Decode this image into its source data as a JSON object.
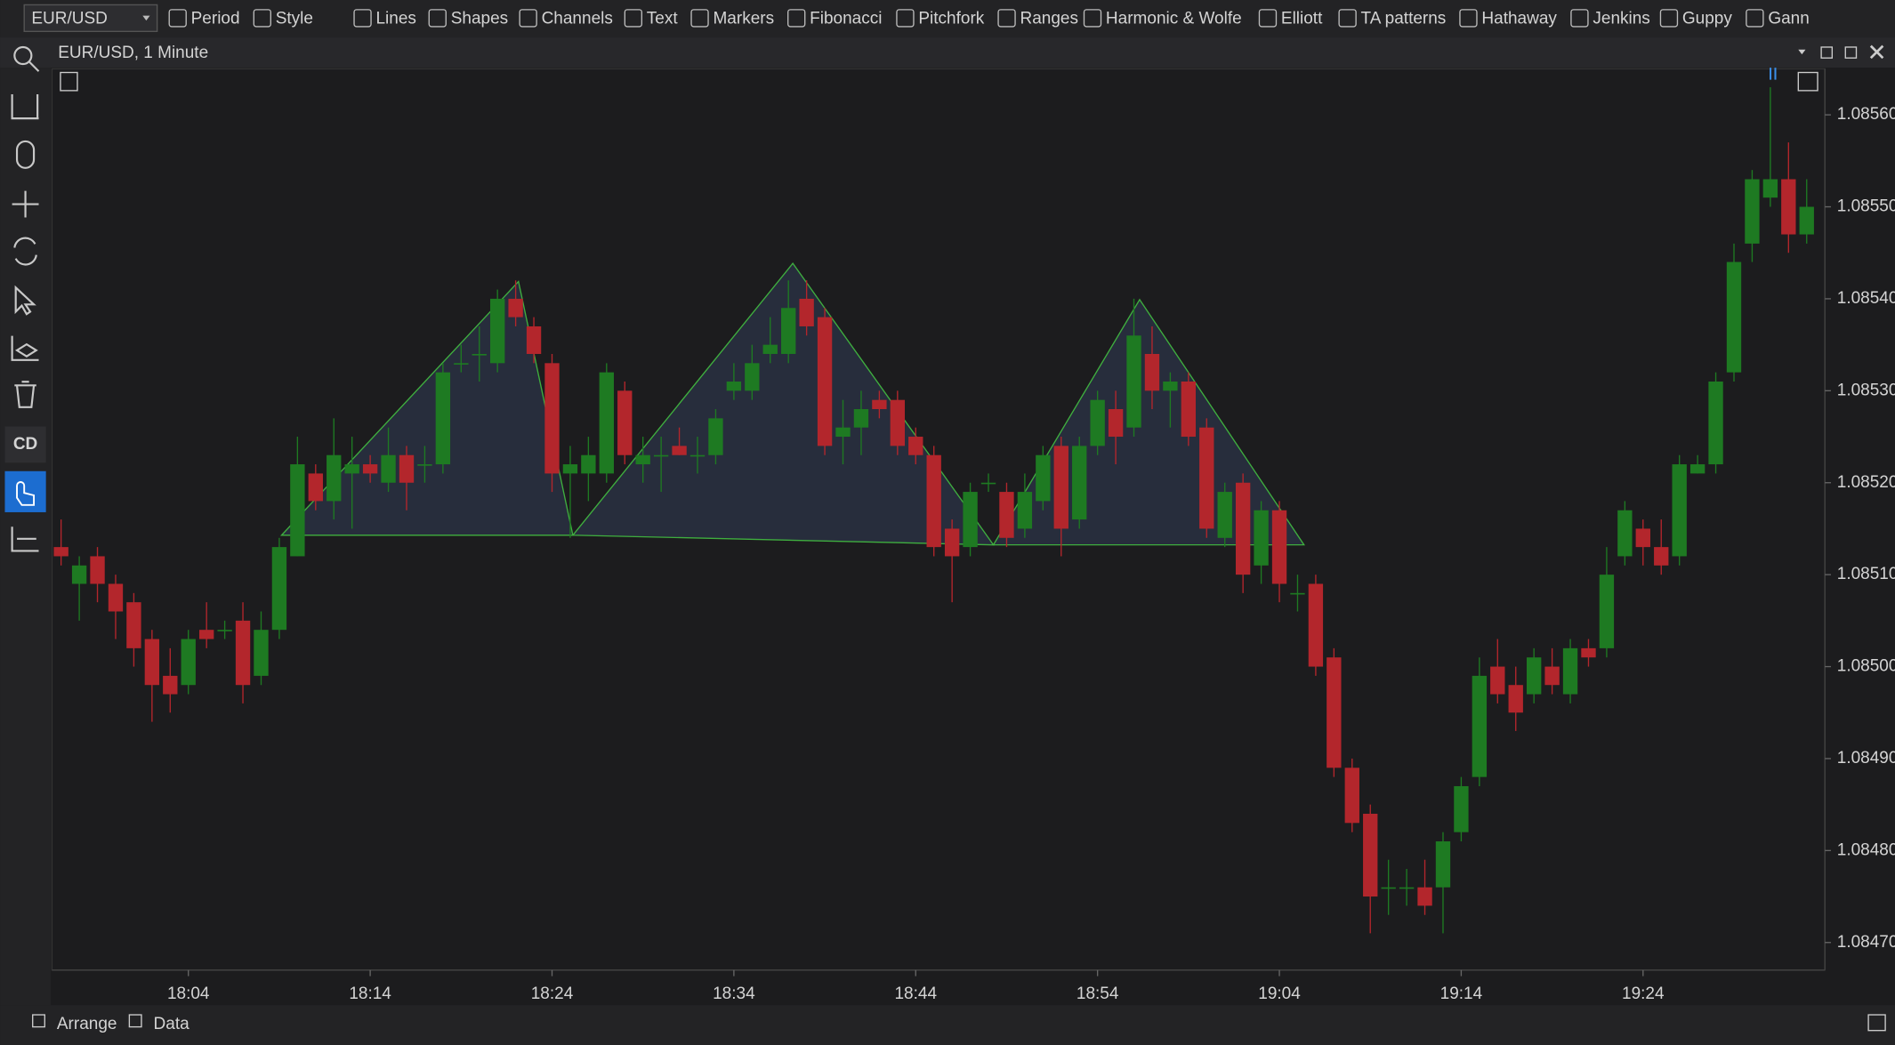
{
  "toolbar": {
    "symbol": "EUR/USD",
    "items": [
      "Period",
      "Style",
      "Lines",
      "Shapes",
      "Channels",
      "Text",
      "Markers",
      "Fibonacci",
      "Pitchfork",
      "Ranges",
      "Harmonic & Wolfe",
      "Elliott",
      "TA patterns",
      "Hathaway",
      "Jenkins",
      "Guppy",
      "Gann"
    ]
  },
  "sidebar": {
    "badge": "CD"
  },
  "bottom_bar": [
    "Arrange",
    "Data"
  ],
  "chart_data": {
    "type": "candlestick",
    "title": "EUR/USD, 1 Minute",
    "up_color": "#1e7a22",
    "down_color": "#b3262c",
    "x": [
      "17:57",
      "17:58",
      "17:59",
      "18:00",
      "18:01",
      "18:02",
      "18:03",
      "18:04",
      "18:05",
      "18:06",
      "18:07",
      "18:08",
      "18:09",
      "18:10",
      "18:11",
      "18:12",
      "18:13",
      "18:14",
      "18:15",
      "18:16",
      "18:17",
      "18:18",
      "18:19",
      "18:20",
      "18:21",
      "18:22",
      "18:23",
      "18:24",
      "18:25",
      "18:26",
      "18:27",
      "18:28",
      "18:29",
      "18:30",
      "18:31",
      "18:32",
      "18:33",
      "18:34",
      "18:35",
      "18:36",
      "18:37",
      "18:38",
      "18:39",
      "18:40",
      "18:41",
      "18:42",
      "18:43",
      "18:44",
      "18:45",
      "18:46",
      "18:47",
      "18:48",
      "18:49",
      "18:50",
      "18:51",
      "18:52",
      "18:53",
      "18:54",
      "18:55",
      "18:56",
      "18:57",
      "18:58",
      "18:59",
      "19:00",
      "19:01",
      "19:02",
      "19:03",
      "19:04",
      "19:05",
      "19:06",
      "19:07",
      "19:08",
      "19:09",
      "19:10",
      "19:11",
      "19:12",
      "19:13",
      "19:14",
      "19:15",
      "19:16",
      "19:17",
      "19:18",
      "19:19",
      "19:20",
      "19:21",
      "19:22",
      "19:23",
      "19:24",
      "19:25",
      "19:26",
      "19:27",
      "19:28",
      "19:29",
      "19:30",
      "19:31",
      "19:32",
      "19:33"
    ],
    "open": [
      1.08513,
      1.08509,
      1.08512,
      1.08509,
      1.08507,
      1.08503,
      1.08499,
      1.08498,
      1.08504,
      1.08504,
      1.08505,
      1.08499,
      1.08504,
      1.08512,
      1.08521,
      1.08518,
      1.08521,
      1.08522,
      1.0852,
      1.08523,
      1.08522,
      1.08522,
      1.08533,
      1.08534,
      1.08533,
      1.0854,
      1.08537,
      1.08533,
      1.08521,
      1.08521,
      1.08521,
      1.0853,
      1.08522,
      1.08523,
      1.08524,
      1.08523,
      1.08523,
      1.0853,
      1.0853,
      1.08534,
      1.08534,
      1.0854,
      1.08538,
      1.08525,
      1.08526,
      1.08529,
      1.08529,
      1.08525,
      1.08523,
      1.08515,
      1.08513,
      1.0852,
      1.08519,
      1.08515,
      1.08518,
      1.08524,
      1.08516,
      1.08524,
      1.08528,
      1.08526,
      1.08534,
      1.0853,
      1.08531,
      1.08526,
      1.08514,
      1.0852,
      1.08511,
      1.08517,
      1.08508,
      1.08509,
      1.08501,
      1.08489,
      1.08484,
      1.08476,
      1.08476,
      1.08476,
      1.08476,
      1.08482,
      1.08488,
      1.085,
      1.08498,
      1.08497,
      1.085,
      1.08497,
      1.08502,
      1.08502,
      1.08512,
      1.08515,
      1.08513,
      1.08512,
      1.08521,
      1.08522,
      1.08532,
      1.08546,
      1.08551,
      1.08553,
      1.08547
    ],
    "high": [
      1.08516,
      1.08512,
      1.08513,
      1.0851,
      1.08508,
      1.08504,
      1.08502,
      1.08504,
      1.08507,
      1.08505,
      1.08507,
      1.08506,
      1.08514,
      1.08525,
      1.08522,
      1.08527,
      1.08525,
      1.08523,
      1.08526,
      1.08524,
      1.08524,
      1.08533,
      1.08535,
      1.08537,
      1.08541,
      1.08542,
      1.08538,
      1.08534,
      1.08524,
      1.08525,
      1.08533,
      1.08531,
      1.08525,
      1.08525,
      1.08526,
      1.08525,
      1.08528,
      1.08533,
      1.08535,
      1.08538,
      1.08542,
      1.08542,
      1.08539,
      1.08529,
      1.0853,
      1.0853,
      1.0853,
      1.08526,
      1.08524,
      1.08516,
      1.0852,
      1.08521,
      1.0852,
      1.08521,
      1.08524,
      1.08525,
      1.08525,
      1.0853,
      1.0853,
      1.0854,
      1.08537,
      1.08532,
      1.08532,
      1.08527,
      1.0852,
      1.08521,
      1.08518,
      1.08518,
      1.0851,
      1.0851,
      1.08502,
      1.0849,
      1.08485,
      1.08479,
      1.08478,
      1.08479,
      1.08482,
      1.08488,
      1.08501,
      1.08503,
      1.085,
      1.08502,
      1.08502,
      1.08503,
      1.08503,
      1.08513,
      1.08518,
      1.08516,
      1.08516,
      1.08523,
      1.08523,
      1.08532,
      1.08546,
      1.08554,
      1.08563,
      1.08557,
      1.08553
    ],
    "low": [
      1.08511,
      1.08505,
      1.08507,
      1.08503,
      1.085,
      1.08494,
      1.08495,
      1.08497,
      1.08502,
      1.08503,
      1.08496,
      1.08498,
      1.08503,
      1.08512,
      1.08517,
      1.08516,
      1.08515,
      1.0852,
      1.08519,
      1.08517,
      1.0852,
      1.08521,
      1.08532,
      1.08531,
      1.08532,
      1.08537,
      1.08533,
      1.08519,
      1.08514,
      1.08518,
      1.0852,
      1.08522,
      1.0852,
      1.08519,
      1.08523,
      1.08521,
      1.08522,
      1.08529,
      1.08529,
      1.08533,
      1.08533,
      1.08536,
      1.08523,
      1.08522,
      1.08523,
      1.08527,
      1.08523,
      1.08522,
      1.08512,
      1.08507,
      1.08512,
      1.08519,
      1.08513,
      1.08514,
      1.08517,
      1.08512,
      1.08515,
      1.08523,
      1.08522,
      1.08525,
      1.08528,
      1.08526,
      1.08524,
      1.08514,
      1.08513,
      1.08508,
      1.08509,
      1.08507,
      1.08506,
      1.08499,
      1.08488,
      1.08482,
      1.08471,
      1.08473,
      1.08474,
      1.08473,
      1.08471,
      1.08481,
      1.08487,
      1.08496,
      1.08493,
      1.08496,
      1.08497,
      1.08496,
      1.085,
      1.08501,
      1.08511,
      1.08511,
      1.0851,
      1.08511,
      1.08521,
      1.08521,
      1.08531,
      1.08544,
      1.0855,
      1.08545,
      1.08546
    ],
    "close": [
      1.08512,
      1.08511,
      1.08509,
      1.08506,
      1.08502,
      1.08498,
      1.08497,
      1.08503,
      1.08503,
      1.08504,
      1.08498,
      1.08504,
      1.08513,
      1.08522,
      1.08518,
      1.08523,
      1.08522,
      1.08521,
      1.08523,
      1.0852,
      1.08522,
      1.08532,
      1.08533,
      1.08534,
      1.0854,
      1.08538,
      1.08534,
      1.08521,
      1.08522,
      1.08523,
      1.08532,
      1.08523,
      1.08523,
      1.08523,
      1.08523,
      1.08523,
      1.08527,
      1.08531,
      1.08533,
      1.08535,
      1.08539,
      1.08537,
      1.08524,
      1.08526,
      1.08528,
      1.08528,
      1.08524,
      1.08523,
      1.08513,
      1.08512,
      1.08519,
      1.0852,
      1.08514,
      1.08519,
      1.08523,
      1.08515,
      1.08524,
      1.08529,
      1.08525,
      1.08536,
      1.0853,
      1.08531,
      1.08525,
      1.08515,
      1.08519,
      1.0851,
      1.08517,
      1.08509,
      1.08508,
      1.085,
      1.08489,
      1.08483,
      1.08475,
      1.08476,
      1.08476,
      1.08474,
      1.08481,
      1.08487,
      1.08499,
      1.08497,
      1.08495,
      1.08501,
      1.08498,
      1.08502,
      1.08501,
      1.0851,
      1.08517,
      1.08513,
      1.08511,
      1.08522,
      1.08522,
      1.08531,
      1.08544,
      1.08553,
      1.08553,
      1.08547,
      1.0855
    ],
    "ylim": [
      1.08467,
      1.08565
    ],
    "yticks": [
      {
        "value": 1.0856,
        "label": "1.08560"
      },
      {
        "value": 1.0855,
        "label": "1.08550"
      },
      {
        "value": 1.0854,
        "label": "1.08540"
      },
      {
        "value": 1.0853,
        "label": "1.08530"
      },
      {
        "value": 1.0852,
        "label": "1.08520"
      },
      {
        "value": 1.0851,
        "label": "1.08510"
      },
      {
        "value": 1.085,
        "label": "1.08500"
      },
      {
        "value": 1.0849,
        "label": "1.08490"
      },
      {
        "value": 1.0848,
        "label": "1.08480"
      },
      {
        "value": 1.0847,
        "label": "1.08470"
      }
    ],
    "xticks": [
      "18:04",
      "18:14",
      "18:24",
      "18:34",
      "18:44",
      "18:54",
      "19:04",
      "19:14",
      "19:24"
    ]
  }
}
